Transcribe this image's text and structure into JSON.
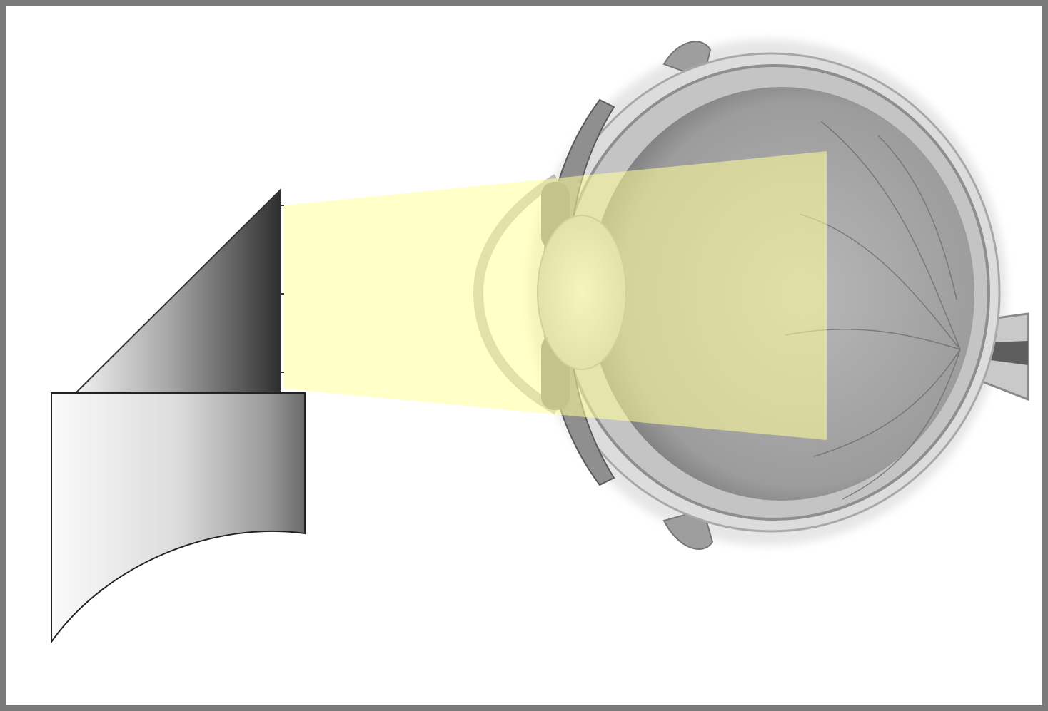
{
  "figure": {
    "objects": [
      {
        "id": "prism-block",
        "icon": "prism-icon"
      },
      {
        "id": "light-beam",
        "icon": "light-beam-icon"
      },
      {
        "id": "eye-cross-section",
        "icon": "eye-icon"
      }
    ],
    "colors": {
      "frame": "#7a7a7a",
      "beam": "#ffff99",
      "beam_opacity": 0.55,
      "eye_fill": "#a7a7a7",
      "sclera": "#d9d9d9"
    }
  }
}
